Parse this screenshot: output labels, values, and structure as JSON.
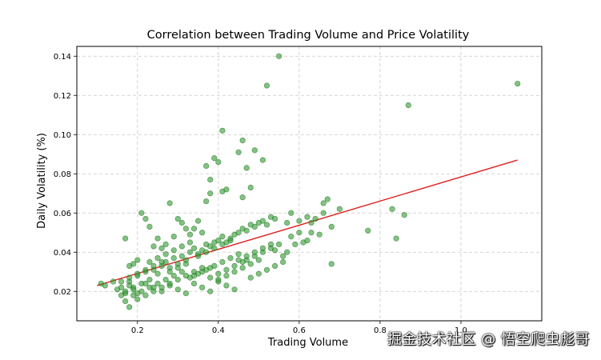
{
  "chart_data": {
    "type": "scatter",
    "title": "Correlation between Trading Volume and Price Volatility",
    "xlabel": "Trading Volume",
    "ylabel": "Daily Volatility (%)",
    "xlim": [
      0.05,
      1.2
    ],
    "ylim": [
      0.005,
      0.145
    ],
    "xticks": [
      0.2,
      0.4,
      0.6,
      0.8,
      1.0
    ],
    "xtick_labels": [
      "0.2",
      "0.4",
      "0.6",
      "0.8",
      "1.0"
    ],
    "yticks": [
      0.02,
      0.04,
      0.06,
      0.08,
      0.1,
      0.12,
      0.14
    ],
    "ytick_labels": [
      "0.02",
      "0.04",
      "0.06",
      "0.08",
      "0.10",
      "0.12",
      "0.14"
    ],
    "grid": true,
    "point_color": "#2e9a2e",
    "point_edge_color": "#1f6f1f",
    "trend_color": "#e02020",
    "trend_line": {
      "x": [
        0.1,
        1.14
      ],
      "y": [
        0.023,
        0.087
      ]
    },
    "points": {
      "x": [
        0.55,
        0.52,
        1.14,
        0.87,
        0.41,
        0.46,
        0.49,
        0.45,
        0.39,
        0.51,
        0.37,
        0.4,
        0.47,
        0.38,
        0.41,
        0.42,
        0.48,
        0.46,
        0.38,
        0.37,
        0.67,
        0.66,
        0.7,
        0.83,
        0.86,
        0.77,
        0.84,
        0.68,
        0.64,
        0.62,
        0.6,
        0.58,
        0.57,
        0.63,
        0.65,
        0.62,
        0.68,
        0.56,
        0.54,
        0.59,
        0.21,
        0.22,
        0.23,
        0.25,
        0.28,
        0.3,
        0.31,
        0.32,
        0.33,
        0.35,
        0.34,
        0.36,
        0.29,
        0.27,
        0.26,
        0.24,
        0.2,
        0.19,
        0.18,
        0.17,
        0.16,
        0.15,
        0.17,
        0.18,
        0.19,
        0.2,
        0.21,
        0.22,
        0.23,
        0.24,
        0.25,
        0.26,
        0.27,
        0.28,
        0.29,
        0.3,
        0.31,
        0.32,
        0.33,
        0.34,
        0.35,
        0.36,
        0.37,
        0.38,
        0.39,
        0.4,
        0.41,
        0.42,
        0.43,
        0.44,
        0.45,
        0.46,
        0.47,
        0.48,
        0.49,
        0.5,
        0.51,
        0.52,
        0.53,
        0.54,
        0.12,
        0.11,
        0.14,
        0.16,
        0.17,
        0.18,
        0.19,
        0.2,
        0.22,
        0.24,
        0.26,
        0.28,
        0.3,
        0.32,
        0.34,
        0.36,
        0.38,
        0.4,
        0.42,
        0.44,
        0.17,
        0.19,
        0.21,
        0.23,
        0.25,
        0.27,
        0.29,
        0.31,
        0.33,
        0.35,
        0.37,
        0.39,
        0.41,
        0.43,
        0.45,
        0.47,
        0.49,
        0.51,
        0.53,
        0.55,
        0.16,
        0.18,
        0.2,
        0.22,
        0.24,
        0.26,
        0.28,
        0.3,
        0.32,
        0.34,
        0.36,
        0.38,
        0.4,
        0.42,
        0.44,
        0.46,
        0.48,
        0.5,
        0.57,
        0.61,
        0.18,
        0.2,
        0.22,
        0.24,
        0.26,
        0.28,
        0.3,
        0.32,
        0.34,
        0.36,
        0.38,
        0.4,
        0.42,
        0.44,
        0.46,
        0.48,
        0.5,
        0.52,
        0.54,
        0.56,
        0.23,
        0.25,
        0.27,
        0.29,
        0.31,
        0.33,
        0.35,
        0.37,
        0.39,
        0.41,
        0.43,
        0.45,
        0.47,
        0.49,
        0.51,
        0.53,
        0.58,
        0.6,
        0.63,
        0.66
      ],
      "y": [
        0.14,
        0.125,
        0.126,
        0.115,
        0.102,
        0.097,
        0.092,
        0.091,
        0.088,
        0.087,
        0.084,
        0.086,
        0.083,
        0.077,
        0.071,
        0.072,
        0.073,
        0.068,
        0.07,
        0.066,
        0.067,
        0.065,
        0.062,
        0.062,
        0.059,
        0.051,
        0.047,
        0.053,
        0.057,
        0.058,
        0.056,
        0.06,
        0.055,
        0.05,
        0.049,
        0.046,
        0.034,
        0.038,
        0.041,
        0.044,
        0.06,
        0.057,
        0.053,
        0.047,
        0.065,
        0.057,
        0.055,
        0.052,
        0.049,
        0.056,
        0.052,
        0.05,
        0.048,
        0.044,
        0.042,
        0.043,
        0.036,
        0.034,
        0.033,
        0.047,
        0.018,
        0.021,
        0.019,
        0.025,
        0.022,
        0.028,
        0.024,
        0.03,
        0.026,
        0.031,
        0.029,
        0.033,
        0.035,
        0.032,
        0.037,
        0.034,
        0.038,
        0.036,
        0.04,
        0.042,
        0.039,
        0.041,
        0.044,
        0.043,
        0.045,
        0.046,
        0.048,
        0.045,
        0.047,
        0.049,
        0.05,
        0.052,
        0.051,
        0.054,
        0.053,
        0.055,
        0.056,
        0.054,
        0.058,
        0.057,
        0.023,
        0.024,
        0.025,
        0.022,
        0.02,
        0.023,
        0.021,
        0.019,
        0.024,
        0.022,
        0.02,
        0.023,
        0.021,
        0.019,
        0.024,
        0.022,
        0.02,
        0.025,
        0.023,
        0.021,
        0.015,
        0.018,
        0.02,
        0.022,
        0.024,
        0.026,
        0.028,
        0.03,
        0.027,
        0.029,
        0.031,
        0.033,
        0.035,
        0.037,
        0.039,
        0.036,
        0.038,
        0.04,
        0.042,
        0.044,
        0.025,
        0.027,
        0.029,
        0.031,
        0.033,
        0.035,
        0.03,
        0.032,
        0.034,
        0.028,
        0.03,
        0.032,
        0.026,
        0.028,
        0.03,
        0.032,
        0.034,
        0.036,
        0.04,
        0.045,
        0.012,
        0.016,
        0.018,
        0.02,
        0.022,
        0.024,
        0.026,
        0.028,
        0.03,
        0.032,
        0.027,
        0.029,
        0.031,
        0.033,
        0.035,
        0.027,
        0.029,
        0.031,
        0.033,
        0.035,
        0.035,
        0.037,
        0.039,
        0.041,
        0.043,
        0.045,
        0.038,
        0.04,
        0.042,
        0.044,
        0.046,
        0.036,
        0.038,
        0.04,
        0.042,
        0.044,
        0.048,
        0.05,
        0.055,
        0.06
      ]
    }
  },
  "watermark": "掘金技术社区 @ 悟空爬虫彪哥"
}
